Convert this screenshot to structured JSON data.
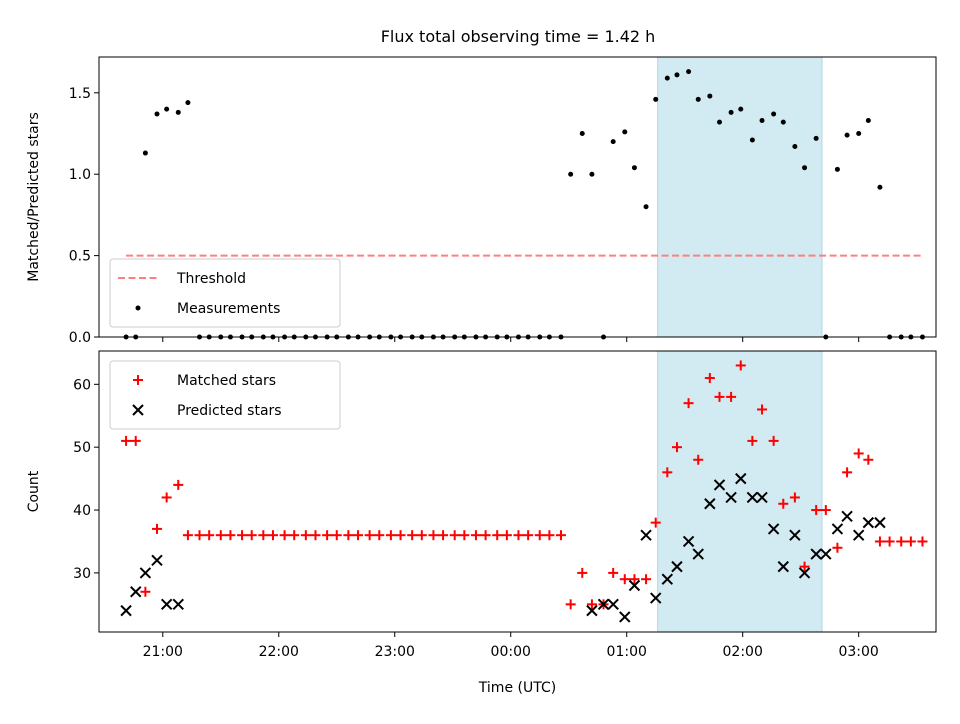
{
  "title": "Flux total observing time = 1.42 h",
  "colors": {
    "measurement": "#000000",
    "threshold": "#ff7f7f",
    "matched": "#ff0000",
    "predicted": "#000000",
    "shade": "#add8e6"
  },
  "chart_data": [
    {
      "type": "scatter",
      "panel": "top",
      "ylabel": "Matched/Predicted stars",
      "xlim": [
        "20:27",
        "03:40"
      ],
      "ylim": [
        0,
        1.72
      ],
      "yticks": [
        "0.0",
        "0.5",
        "1.0",
        "1.5"
      ],
      "shaded_interval": [
        "01:16",
        "02:41"
      ],
      "legend": {
        "position": "lower-left",
        "entries": [
          "Threshold",
          "Measurements"
        ]
      },
      "threshold": {
        "name": "Threshold",
        "y": 0.5,
        "x": [
          "20:41",
          "03:33"
        ],
        "style": "dashed"
      },
      "series": [
        {
          "name": "Measurements",
          "marker": "dot",
          "x": [
            "20:41",
            "20:46",
            "20:51",
            "20:57",
            "21:02",
            "21:08",
            "21:13",
            "21:19",
            "21:24",
            "21:30",
            "21:35",
            "21:41",
            "21:46",
            "21:52",
            "21:57",
            "22:03",
            "22:08",
            "22:14",
            "22:19",
            "22:25",
            "22:30",
            "22:36",
            "22:41",
            "22:47",
            "22:52",
            "22:58",
            "23:03",
            "23:09",
            "23:14",
            "23:20",
            "23:25",
            "23:31",
            "23:36",
            "23:42",
            "23:47",
            "23:53",
            "23:58",
            "00:04",
            "00:09",
            "00:15",
            "00:20",
            "00:26",
            "00:31",
            "00:37",
            "00:42",
            "00:48",
            "00:53",
            "00:59",
            "01:04",
            "01:10",
            "01:15",
            "01:21",
            "01:26",
            "01:32",
            "01:37",
            "01:43",
            "01:48",
            "01:54",
            "01:59",
            "02:05",
            "02:10",
            "02:16",
            "02:21",
            "02:27",
            "02:32",
            "02:38",
            "02:43",
            "02:49",
            "02:54",
            "03:00",
            "03:05",
            "03:11",
            "03:16",
            "03:22",
            "03:27",
            "03:33"
          ],
          "y": [
            0,
            0,
            1.13,
            1.37,
            1.4,
            1.38,
            1.44,
            0,
            0,
            0,
            0,
            0,
            0,
            0,
            0,
            0,
            0,
            0,
            0,
            0,
            0,
            0,
            0,
            0,
            0,
            0,
            0,
            0,
            0,
            0,
            0,
            0,
            0,
            0,
            0,
            0,
            0,
            0,
            0,
            0,
            0,
            0,
            1.0,
            1.25,
            1.0,
            0,
            1.2,
            1.26,
            1.04,
            0.8,
            1.46,
            1.59,
            1.61,
            1.63,
            1.46,
            1.48,
            1.32,
            1.38,
            1.4,
            1.21,
            1.33,
            1.37,
            1.32,
            1.17,
            1.04,
            1.22,
            0,
            1.03,
            1.24,
            1.25,
            1.33,
            0.92,
            0,
            0,
            0,
            0
          ]
        }
      ]
    },
    {
      "type": "scatter",
      "panel": "bottom",
      "xlabel": "Time (UTC)",
      "ylabel": "Count",
      "xlim": [
        "20:27",
        "03:40"
      ],
      "ylim": [
        20.6,
        65.3
      ],
      "xticks": [
        "21:00",
        "22:00",
        "23:00",
        "00:00",
        "01:00",
        "02:00",
        "03:00"
      ],
      "yticks": [
        "30",
        "40",
        "50",
        "60"
      ],
      "shaded_interval": [
        "01:16",
        "02:41"
      ],
      "legend": {
        "position": "top-left",
        "entries": [
          "Matched stars",
          "Predicted stars"
        ]
      },
      "series": [
        {
          "name": "Matched stars",
          "marker": "plus",
          "x": [
            "20:41",
            "20:46",
            "20:51",
            "20:57",
            "21:02",
            "21:08",
            "21:13",
            "21:19",
            "21:24",
            "21:30",
            "21:35",
            "21:41",
            "21:46",
            "21:52",
            "21:57",
            "22:03",
            "22:08",
            "22:14",
            "22:19",
            "22:25",
            "22:30",
            "22:36",
            "22:41",
            "22:47",
            "22:52",
            "22:58",
            "23:03",
            "23:09",
            "23:14",
            "23:20",
            "23:25",
            "23:31",
            "23:36",
            "23:42",
            "23:47",
            "23:53",
            "23:58",
            "00:04",
            "00:09",
            "00:15",
            "00:20",
            "00:26",
            "00:31",
            "00:37",
            "00:42",
            "00:48",
            "00:53",
            "00:59",
            "01:04",
            "01:10",
            "01:15",
            "01:21",
            "01:26",
            "01:32",
            "01:37",
            "01:43",
            "01:48",
            "01:54",
            "01:59",
            "02:05",
            "02:10",
            "02:16",
            "02:21",
            "02:27",
            "02:32",
            "02:38",
            "02:43",
            "02:49",
            "02:54",
            "03:00",
            "03:05",
            "03:11",
            "03:16",
            "03:22",
            "03:27",
            "03:33"
          ],
          "y": [
            51,
            51,
            27,
            37,
            42,
            44,
            36,
            36,
            36,
            36,
            36,
            36,
            36,
            36,
            36,
            36,
            36,
            36,
            36,
            36,
            36,
            36,
            36,
            36,
            36,
            36,
            36,
            36,
            36,
            36,
            36,
            36,
            36,
            36,
            36,
            36,
            36,
            36,
            36,
            36,
            36,
            36,
            25,
            30,
            25,
            25,
            30,
            29,
            29,
            29,
            38,
            46,
            50,
            57,
            48,
            61,
            58,
            58,
            63,
            51,
            56,
            51,
            41,
            42,
            31,
            40,
            40,
            34,
            46,
            49,
            48,
            35,
            35,
            35,
            35,
            35
          ]
        },
        {
          "name": "Predicted stars",
          "marker": "x",
          "x": [
            "20:41",
            "20:46",
            "20:51",
            "20:57",
            "21:02",
            "21:08",
            "00:42",
            "00:48",
            "00:53",
            "00:59",
            "01:04",
            "01:10",
            "01:15",
            "01:21",
            "01:26",
            "01:32",
            "01:37",
            "01:43",
            "01:48",
            "01:54",
            "01:59",
            "02:05",
            "02:10",
            "02:16",
            "02:21",
            "02:27",
            "02:32",
            "02:38",
            "02:43",
            "02:49",
            "02:54",
            "03:00",
            "03:05",
            "03:11"
          ],
          "y": [
            24,
            27,
            30,
            32,
            25,
            25,
            24,
            25,
            25,
            23,
            28,
            36,
            26,
            29,
            31,
            35,
            33,
            41,
            44,
            42,
            45,
            42,
            42,
            37,
            31,
            36,
            30,
            33,
            33,
            37,
            39,
            36,
            38,
            38
          ]
        }
      ]
    }
  ]
}
